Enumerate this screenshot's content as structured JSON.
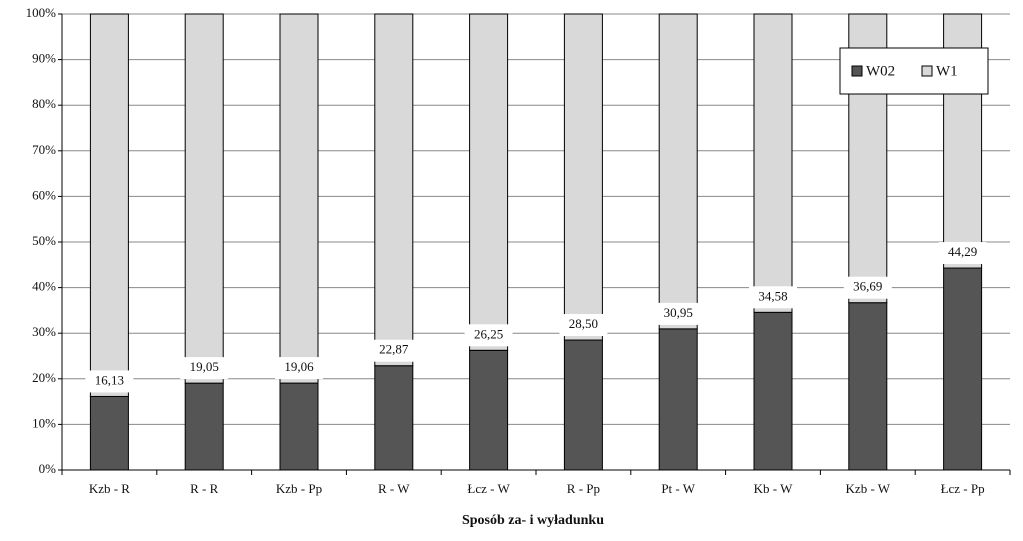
{
  "chart_data": {
    "type": "stacked_bar",
    "x_label": "Sposób za- i wyładunku",
    "categories": [
      "Kzb - R",
      "R - R",
      "Kzb - Pp",
      "R - W",
      "Łcz - W",
      "R - Pp",
      "Pt - W",
      "Kb - W",
      "Kzb - W",
      "Łcz - Pp"
    ],
    "series": [
      {
        "name": "W02",
        "color": "#555555",
        "values": [
          16.13,
          19.05,
          19.06,
          22.87,
          26.25,
          28.5,
          30.95,
          34.58,
          36.69,
          44.29
        ],
        "value_labels": [
          "16,13",
          "19,05",
          "19,06",
          "22,87",
          "26,25",
          "28,50",
          "30,95",
          "34,58",
          "36,69",
          "44,29"
        ]
      },
      {
        "name": "W1",
        "color": "#d9d9d9",
        "values": [
          83.87,
          80.95,
          80.94,
          77.13,
          73.75,
          71.5,
          69.05,
          65.42,
          63.31,
          55.71
        ]
      }
    ],
    "ylim": [
      0,
      100
    ],
    "yticks": [
      {
        "value": 0,
        "label": "0%"
      },
      {
        "value": 10,
        "label": "10%"
      },
      {
        "value": 20,
        "label": "20%"
      },
      {
        "value": 30,
        "label": "30%"
      },
      {
        "value": 40,
        "label": "40%"
      },
      {
        "value": 50,
        "label": "50%"
      },
      {
        "value": 60,
        "label": "60%"
      },
      {
        "value": 70,
        "label": "70%"
      },
      {
        "value": 80,
        "label": "80%"
      },
      {
        "value": 90,
        "label": "90%"
      },
      {
        "value": 100,
        "label": "100%"
      }
    ],
    "grid": true,
    "legend": "upper right"
  }
}
